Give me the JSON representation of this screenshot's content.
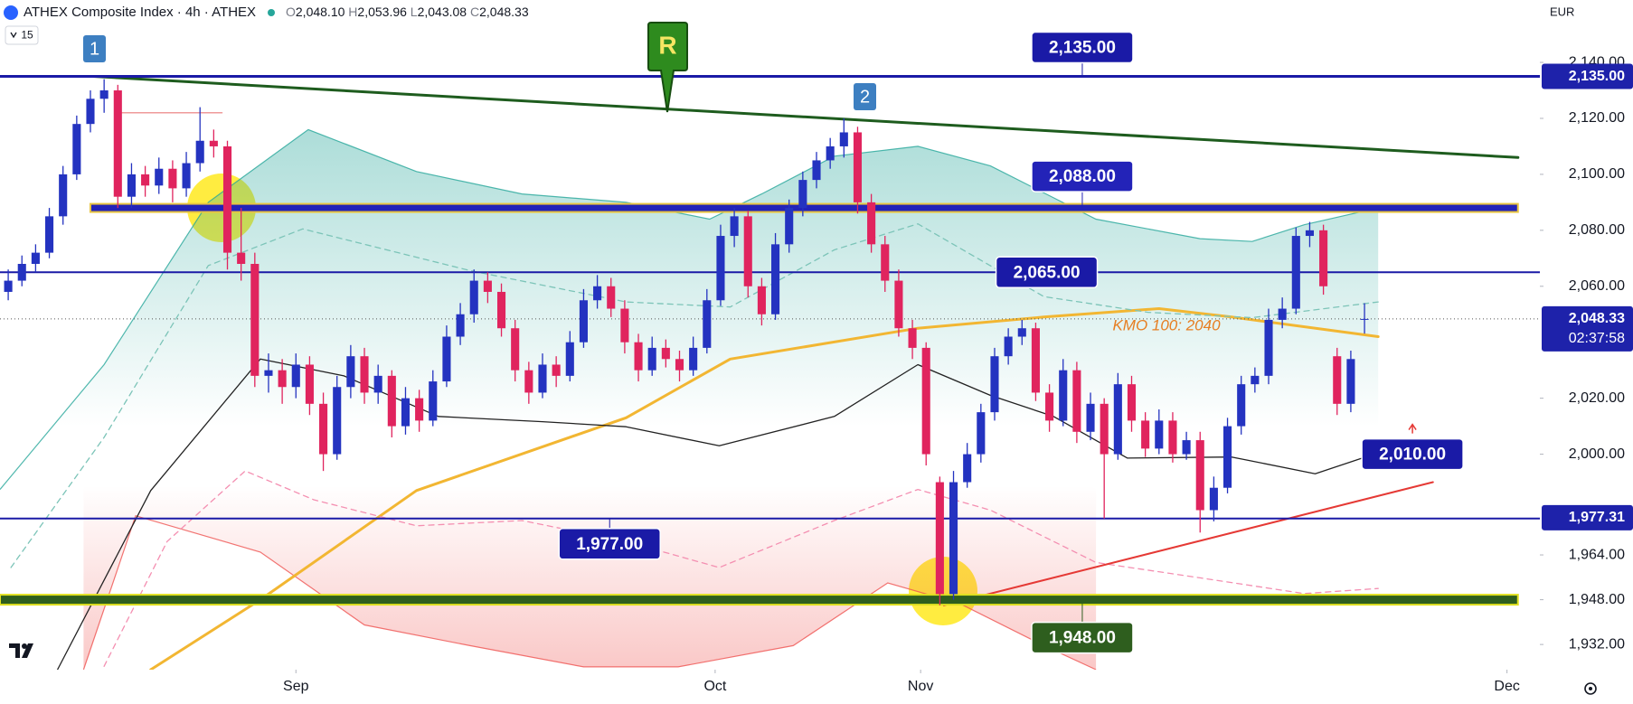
{
  "header": {
    "symbol": "ATHEX Composite Index · 4h · ATHEX",
    "ohlc": [
      {
        "label": "O",
        "value": "2,048.10"
      },
      {
        "label": "H",
        "value": "2,053.96"
      },
      {
        "label": "L",
        "value": "2,043.08"
      },
      {
        "label": "C",
        "value": "2,048.33"
      }
    ],
    "interval_count": "15",
    "currency": "EUR"
  },
  "chart_data": {
    "type": "candlestick",
    "candles": [
      [
        2058,
        2066,
        2055,
        2062
      ],
      [
        2062,
        2071,
        2060,
        2068
      ],
      [
        2068,
        2075,
        2065,
        2072
      ],
      [
        2072,
        2088,
        2070,
        2085
      ],
      [
        2085,
        2103,
        2082,
        2100
      ],
      [
        2100,
        2121,
        2098,
        2118
      ],
      [
        2118,
        2130,
        2115,
        2127
      ],
      [
        2127,
        2134,
        2122,
        2130
      ],
      [
        2130,
        2132,
        2088,
        2092
      ],
      [
        2092,
        2104,
        2088,
        2100
      ],
      [
        2100,
        2103,
        2092,
        2096
      ],
      [
        2096,
        2106,
        2093,
        2102
      ],
      [
        2102,
        2105,
        2090,
        2095
      ],
      [
        2095,
        2108,
        2092,
        2104
      ],
      [
        2104,
        2124,
        2101,
        2112
      ],
      [
        2112,
        2116,
        2106,
        2110
      ],
      [
        2110,
        2112,
        2066,
        2072
      ],
      [
        2072,
        2088,
        2062,
        2068
      ],
      [
        2068,
        2072,
        2024,
        2028
      ],
      [
        2028,
        2036,
        2022,
        2030
      ],
      [
        2030,
        2034,
        2018,
        2024
      ],
      [
        2024,
        2036,
        2020,
        2032
      ],
      [
        2032,
        2035,
        2014,
        2018
      ],
      [
        2018,
        2022,
        1994,
        2000
      ],
      [
        2000,
        2028,
        1998,
        2024
      ],
      [
        2024,
        2039,
        2020,
        2035
      ],
      [
        2035,
        2038,
        2018,
        2022
      ],
      [
        2022,
        2032,
        2018,
        2028
      ],
      [
        2028,
        2030,
        2006,
        2010
      ],
      [
        2010,
        2024,
        2007,
        2020
      ],
      [
        2020,
        2023,
        2008,
        2012
      ],
      [
        2012,
        2030,
        2010,
        2026
      ],
      [
        2026,
        2046,
        2024,
        2042
      ],
      [
        2042,
        2054,
        2039,
        2050
      ],
      [
        2050,
        2066,
        2047,
        2062
      ],
      [
        2062,
        2065,
        2054,
        2058
      ],
      [
        2058,
        2061,
        2042,
        2045
      ],
      [
        2045,
        2048,
        2026,
        2030
      ],
      [
        2030,
        2033,
        2018,
        2022
      ],
      [
        2022,
        2036,
        2020,
        2032
      ],
      [
        2032,
        2035,
        2024,
        2028
      ],
      [
        2028,
        2044,
        2026,
        2040
      ],
      [
        2040,
        2059,
        2038,
        2055
      ],
      [
        2055,
        2064,
        2052,
        2060
      ],
      [
        2060,
        2063,
        2049,
        2052
      ],
      [
        2052,
        2055,
        2036,
        2040
      ],
      [
        2040,
        2043,
        2026,
        2030
      ],
      [
        2030,
        2042,
        2028,
        2038
      ],
      [
        2038,
        2041,
        2031,
        2034
      ],
      [
        2034,
        2037,
        2026,
        2030
      ],
      [
        2030,
        2042,
        2028,
        2038
      ],
      [
        2038,
        2059,
        2036,
        2055
      ],
      [
        2055,
        2082,
        2053,
        2078
      ],
      [
        2078,
        2088,
        2074,
        2085
      ],
      [
        2085,
        2087,
        2056,
        2060
      ],
      [
        2060,
        2063,
        2046,
        2050
      ],
      [
        2050,
        2079,
        2048,
        2075
      ],
      [
        2075,
        2091,
        2072,
        2088
      ],
      [
        2088,
        2101,
        2085,
        2098
      ],
      [
        2098,
        2108,
        2095,
        2105
      ],
      [
        2105,
        2113,
        2102,
        2110
      ],
      [
        2110,
        2120,
        2106,
        2115
      ],
      [
        2115,
        2117,
        2086,
        2090
      ],
      [
        2090,
        2093,
        2072,
        2075
      ],
      [
        2075,
        2078,
        2058,
        2062
      ],
      [
        2062,
        2066,
        2042,
        2045
      ],
      [
        2045,
        2048,
        2034,
        2038
      ],
      [
        2038,
        2040,
        1996,
        2000
      ],
      [
        1990,
        1992,
        1946,
        1950
      ],
      [
        1950,
        1994,
        1948,
        1990
      ],
      [
        1990,
        2004,
        1988,
        2000
      ],
      [
        2000,
        2018,
        1997,
        2015
      ],
      [
        2015,
        2038,
        2012,
        2035
      ],
      [
        2035,
        2045,
        2032,
        2042
      ],
      [
        2042,
        2048,
        2039,
        2045
      ],
      [
        2045,
        2047,
        2019,
        2022
      ],
      [
        2022,
        2025,
        2008,
        2012
      ],
      [
        2012,
        2034,
        2010,
        2030
      ],
      [
        2030,
        2033,
        2004,
        2008
      ],
      [
        2008,
        2022,
        2005,
        2018
      ],
      [
        2018,
        2020,
        1977,
        2000
      ],
      [
        2000,
        2029,
        1998,
        2025
      ],
      [
        2025,
        2028,
        2008,
        2012
      ],
      [
        2012,
        2015,
        1999,
        2002
      ],
      [
        2002,
        2016,
        2000,
        2012
      ],
      [
        2012,
        2015,
        1997,
        2000
      ],
      [
        2000,
        2008,
        1998,
        2005
      ],
      [
        2005,
        2008,
        1972,
        1980
      ],
      [
        1980,
        1992,
        1976,
        1988
      ],
      [
        1988,
        2013,
        1986,
        2010
      ],
      [
        2010,
        2028,
        2007,
        2025
      ],
      [
        2025,
        2031,
        2022,
        2028
      ],
      [
        2028,
        2052,
        2025,
        2048
      ],
      [
        2048,
        2056,
        2045,
        2052
      ],
      [
        2052,
        2081,
        2050,
        2078
      ],
      [
        2078,
        2083,
        2074,
        2080
      ],
      [
        2080,
        2082,
        2057,
        2060
      ],
      [
        2035,
        2038,
        2014,
        2018
      ],
      [
        2018,
        2037,
        2015,
        2034
      ],
      [
        2048.1,
        2053.96,
        2043.08,
        2048.33
      ]
    ],
    "up_color": "#2433c0",
    "down_color": "#e0245e",
    "xlim": [
      -0.6,
      111.8
    ],
    "xticks": [
      {
        "value": 21,
        "label": "Sep"
      },
      {
        "value": 51.6,
        "label": "Oct"
      },
      {
        "value": 66.6,
        "label": "Nov"
      },
      {
        "value": 109.4,
        "label": "Dec"
      }
    ],
    "ylim": [
      1923,
      2162.3
    ],
    "yticks": [
      {
        "value": 2140,
        "label": "2,140.00"
      },
      {
        "value": 2120,
        "label": "2,120.00"
      },
      {
        "value": 2100,
        "label": "2,100.00"
      },
      {
        "value": 2080,
        "label": "2,080.00"
      },
      {
        "value": 2060,
        "label": "2,060.00"
      },
      {
        "value": 2020,
        "label": "2,020.00"
      },
      {
        "value": 2000,
        "label": "2,000.00"
      },
      {
        "value": 1964,
        "label": "1,964.00"
      },
      {
        "value": 1948,
        "label": "1,948.00"
      },
      {
        "value": 1932,
        "label": "1,932.00"
      }
    ],
    "grid": false,
    "price_labels": [
      {
        "value": 2135,
        "label": "2,135.00"
      },
      {
        "value": 2048.33,
        "label": "2,048.33",
        "countdown": "02:37:58"
      },
      {
        "value": 1977.31,
        "label": "1,977.31"
      }
    ],
    "levels": [
      {
        "value": 2135,
        "label": "2,135.00",
        "color": "#1a1aa6"
      },
      {
        "value": 2088,
        "label": "2,088.00",
        "color": "#2323b8"
      },
      {
        "value": 2065,
        "label": "2,065.00",
        "color": "#1a1aa6"
      },
      {
        "value": 1977,
        "label": "1,977.00",
        "color": "#1a1aa6"
      },
      {
        "value": 1948,
        "label": "1,948.00",
        "color": "#2e5e1e"
      },
      {
        "value": 2010,
        "label": "2,010.00",
        "color": "#1a1aa6"
      }
    ],
    "bands": [
      {
        "color": "#26a69a",
        "edge": "top",
        "x": [
          -0.6,
          7,
          14.6,
          21.9,
          29.8,
          37.5,
          45.1,
          51.2,
          55,
          60.3,
          66.4,
          71.7,
          79.4,
          87,
          90.8,
          94.6,
          100
        ],
        "values": [
          1987.4,
          2032,
          2090,
          2116,
          2101,
          2093,
          2090,
          2084,
          2093,
          2106.5,
          2110,
          2103,
          2084,
          2077,
          2076,
          2082,
          2088
        ]
      },
      {
        "color": "#ef5350",
        "edge": "bottom",
        "x": [
          5.5,
          9.3,
          18.4,
          26,
          33.7,
          42,
          48.9,
          57.3,
          64.2,
          69.5,
          75.6,
          79.4
        ],
        "values": [
          1923,
          1978,
          1965,
          1939,
          1931.6,
          1924,
          1924,
          1931.6,
          1954,
          1946.5,
          1931.6,
          1923
        ]
      }
    ],
    "lines": [
      {
        "color": "#f2b632",
        "width": 3,
        "dashed": false,
        "x": [
          10.4,
          18.4,
          29.8,
          45.1,
          52.7,
          66.4,
          75.6,
          84,
          89.3,
          100
        ],
        "values": [
          1923,
          1948,
          1987,
          2013,
          2034,
          2045,
          2049,
          2052,
          2049,
          2042
        ]
      },
      {
        "color": "#222222",
        "width": 1.3,
        "dashed": false,
        "x": [
          3.6,
          10.4,
          18.4,
          24.5,
          31.4,
          39,
          45.1,
          51.9,
          60.3,
          66.4,
          71.7,
          76.3,
          81.7,
          89.3,
          95.4,
          100
        ],
        "values": [
          1923,
          1987,
          2034,
          2028,
          2013.5,
          2011.6,
          2009.8,
          2003,
          2013.5,
          2032,
          2021,
          2013.5,
          1998.6,
          1999,
          1993,
          2000.5
        ]
      },
      {
        "color": "#7cc4b8",
        "width": 1.3,
        "dashed": true,
        "x": [
          0.2,
          7,
          14.6,
          21.5,
          33.7,
          45.1,
          52.7,
          60.3,
          66.4,
          75.6,
          83.2,
          90.8,
          100
        ],
        "values": [
          1959.5,
          2006,
          2067.4,
          2080.5,
          2065.6,
          2054.4,
          2052.6,
          2073,
          2082.3,
          2056.3,
          2050.7,
          2048.8,
          2054.4
        ]
      },
      {
        "color": "#f48fb1",
        "width": 1.3,
        "dashed": true,
        "x": [
          7,
          11.6,
          17.3,
          22.3,
          29.8,
          37.5,
          45.1,
          51.9,
          60.3,
          66.4,
          71.7,
          79.4,
          87,
          94.6,
          100
        ],
        "values": [
          1924.2,
          1968.8,
          1994,
          1983.7,
          1974.4,
          1976.3,
          1968.8,
          1959.5,
          1976.3,
          1987.4,
          1980,
          1961.3,
          1955.8,
          1950.2,
          1952
        ]
      },
      {
        "color": "#1e5c1e",
        "width": 3,
        "dashed": false,
        "x": [
          6.2,
          110.2
        ],
        "values": [
          2135,
          2106
        ]
      },
      {
        "color": "#e53935",
        "width": 2,
        "dashed": false,
        "x": [
          68.3,
          104
        ],
        "values": [
          1946,
          1990
        ]
      },
      {
        "color": "#ef9a9a",
        "width": 1.5,
        "dashed": false,
        "x": [
          8,
          15.6
        ],
        "values": [
          2122,
          2122
        ]
      }
    ],
    "annotations": [
      "KMO 100: 2040"
    ],
    "markers": [
      "1",
      "2",
      "R"
    ]
  }
}
